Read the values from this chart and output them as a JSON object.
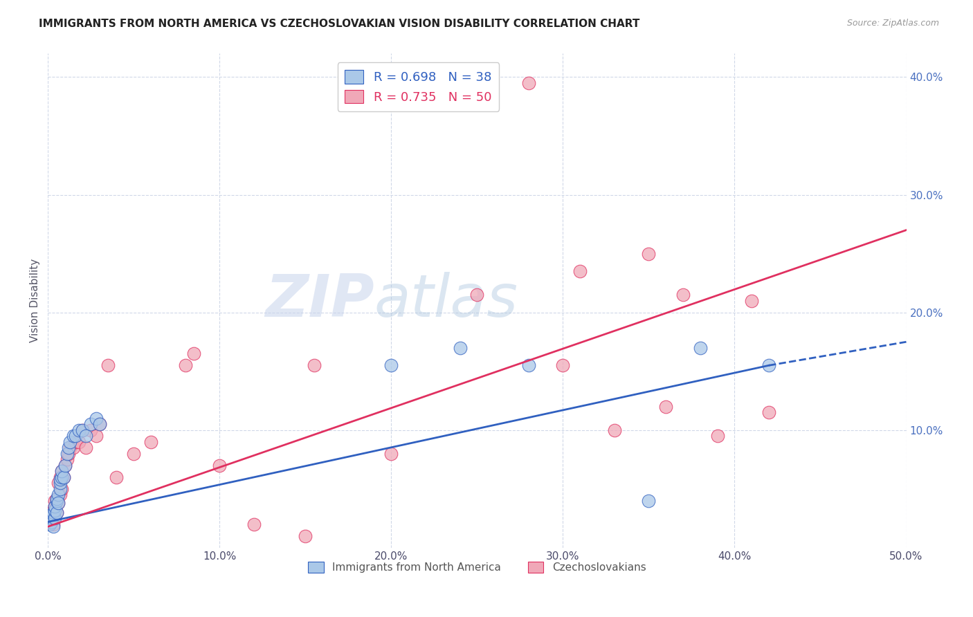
{
  "title": "IMMIGRANTS FROM NORTH AMERICA VS CZECHOSLOVAKIAN VISION DISABILITY CORRELATION CHART",
  "source": "Source: ZipAtlas.com",
  "xlabel_blue": "Immigrants from North America",
  "xlabel_pink": "Czechoslovakians",
  "ylabel": "Vision Disability",
  "xlim": [
    0.0,
    0.5
  ],
  "ylim": [
    0.0,
    0.42
  ],
  "xtick_labels": [
    "0.0%",
    "10.0%",
    "20.0%",
    "30.0%",
    "40.0%",
    "50.0%"
  ],
  "xtick_values": [
    0.0,
    0.1,
    0.2,
    0.3,
    0.4,
    0.5
  ],
  "ytick_labels": [
    "10.0%",
    "20.0%",
    "30.0%",
    "40.0%"
  ],
  "ytick_values": [
    0.1,
    0.2,
    0.3,
    0.4
  ],
  "blue_R": 0.698,
  "blue_N": 38,
  "pink_R": 0.735,
  "pink_N": 50,
  "blue_color": "#aac8e8",
  "pink_color": "#f0a8b8",
  "blue_line_color": "#3060c0",
  "pink_line_color": "#e03060",
  "grid_color": "#d0d8e8",
  "background_color": "#ffffff",
  "watermark_zip": "ZIP",
  "watermark_atlas": "atlas",
  "blue_scatter_x": [
    0.001,
    0.002,
    0.002,
    0.003,
    0.003,
    0.003,
    0.004,
    0.004,
    0.004,
    0.005,
    0.005,
    0.005,
    0.006,
    0.006,
    0.007,
    0.007,
    0.007,
    0.008,
    0.008,
    0.009,
    0.01,
    0.011,
    0.012,
    0.013,
    0.015,
    0.016,
    0.018,
    0.02,
    0.022,
    0.025,
    0.028,
    0.03,
    0.2,
    0.24,
    0.28,
    0.35,
    0.38,
    0.42
  ],
  "blue_scatter_y": [
    0.02,
    0.022,
    0.025,
    0.018,
    0.028,
    0.03,
    0.025,
    0.032,
    0.035,
    0.03,
    0.04,
    0.042,
    0.045,
    0.038,
    0.05,
    0.055,
    0.058,
    0.06,
    0.065,
    0.06,
    0.07,
    0.08,
    0.085,
    0.09,
    0.095,
    0.095,
    0.1,
    0.1,
    0.095,
    0.105,
    0.11,
    0.105,
    0.155,
    0.17,
    0.155,
    0.04,
    0.17,
    0.155
  ],
  "pink_scatter_x": [
    0.001,
    0.002,
    0.002,
    0.003,
    0.003,
    0.004,
    0.004,
    0.005,
    0.005,
    0.006,
    0.006,
    0.007,
    0.007,
    0.008,
    0.008,
    0.009,
    0.01,
    0.011,
    0.012,
    0.013,
    0.015,
    0.016,
    0.018,
    0.02,
    0.022,
    0.025,
    0.028,
    0.03,
    0.035,
    0.04,
    0.05,
    0.06,
    0.08,
    0.085,
    0.1,
    0.12,
    0.15,
    0.155,
    0.2,
    0.25,
    0.28,
    0.3,
    0.31,
    0.33,
    0.35,
    0.36,
    0.37,
    0.39,
    0.41,
    0.42
  ],
  "pink_scatter_y": [
    0.022,
    0.025,
    0.028,
    0.02,
    0.032,
    0.035,
    0.04,
    0.03,
    0.042,
    0.038,
    0.055,
    0.045,
    0.06,
    0.05,
    0.065,
    0.06,
    0.07,
    0.075,
    0.08,
    0.085,
    0.085,
    0.09,
    0.09,
    0.1,
    0.085,
    0.1,
    0.095,
    0.105,
    0.155,
    0.06,
    0.08,
    0.09,
    0.155,
    0.165,
    0.07,
    0.02,
    0.01,
    0.155,
    0.08,
    0.215,
    0.395,
    0.155,
    0.235,
    0.1,
    0.25,
    0.12,
    0.215,
    0.095,
    0.21,
    0.115
  ],
  "blue_line_x0": 0.0,
  "blue_line_y0": 0.022,
  "blue_line_x1": 0.42,
  "blue_line_y1": 0.155,
  "blue_line_solid_end": 0.42,
  "blue_line_dash_end": 0.5,
  "blue_line_dash_y_end": 0.175,
  "pink_line_x0": 0.0,
  "pink_line_y0": 0.018,
  "pink_line_x1": 0.5,
  "pink_line_y1": 0.27
}
